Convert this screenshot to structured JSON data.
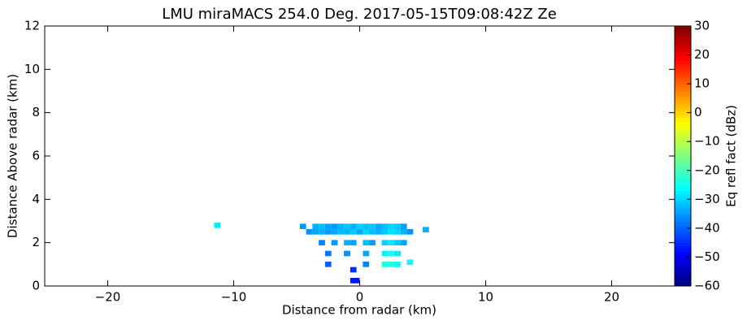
{
  "chart_data": {
    "type": "heatmap",
    "title": "LMU miraMACS 254.0 Deg. 2017-05-15T09:08:42Z  Ze",
    "x_label": "Distance from radar (km)",
    "y_label": "Distance Above radar  (km)",
    "colorbar_label": "Eq refl fact (dBz)",
    "colormap": "jet",
    "xlim": [
      -25,
      25
    ],
    "xticks": [
      {
        "value": -20,
        "label": "−20"
      },
      {
        "value": -10,
        "label": "−10"
      },
      0,
      10,
      20
    ],
    "ylim": [
      0,
      12
    ],
    "yticks": [
      0,
      2,
      4,
      6,
      8,
      10,
      12
    ],
    "clim": [
      -60,
      30
    ],
    "cticks": [
      {
        "value": -60,
        "label": "−60"
      },
      {
        "value": -50,
        "label": "−50"
      },
      {
        "value": -40,
        "label": "−40"
      },
      {
        "value": -30,
        "label": "−30"
      },
      {
        "value": -20,
        "label": "−20"
      },
      {
        "value": -10,
        "label": "−10"
      },
      0,
      10,
      20,
      30
    ],
    "x": [
      -4.5,
      -3.5,
      -3,
      -2.5,
      -2,
      -1.5,
      -1,
      -0.5,
      0,
      0.5,
      1,
      1.5,
      2,
      2.5,
      3,
      3.5,
      5.25,
      -4,
      -3.5,
      -3,
      -2.5,
      -2,
      -1.5,
      -1,
      -0.5,
      0,
      0.5,
      1,
      1.5,
      2,
      2.5,
      3,
      3.5,
      4,
      -3,
      -2,
      -1,
      -0.5,
      0.5,
      1,
      2,
      2.5,
      3,
      3.5,
      -2.5,
      -1,
      0.5,
      2,
      2.5,
      3,
      -2.5,
      0.5,
      2,
      2.5,
      3,
      -0.5,
      -0.5,
      -0.25,
      -11.3,
      4
    ],
    "y": [
      2.75,
      2.75,
      2.75,
      2.75,
      2.75,
      2.75,
      2.75,
      2.75,
      2.75,
      2.75,
      2.75,
      2.75,
      2.75,
      2.75,
      2.75,
      2.75,
      2.6,
      2.5,
      2.5,
      2.5,
      2.5,
      2.5,
      2.5,
      2.5,
      2.5,
      2.5,
      2.5,
      2.5,
      2.5,
      2.5,
      2.5,
      2.5,
      2.5,
      2.5,
      2,
      2,
      2,
      2,
      2,
      2,
      2,
      2,
      2,
      2,
      1.5,
      1.5,
      1.5,
      1.5,
      1.5,
      1.5,
      1,
      1,
      1,
      1,
      1,
      0.75,
      0.25,
      0.25,
      2.8,
      1.1
    ],
    "values": [
      -35,
      -33,
      -32,
      -34,
      -35,
      -33,
      -31,
      -33,
      -30,
      -32,
      -31,
      -34,
      -32,
      -30,
      -31,
      -35,
      -33,
      -36,
      -34,
      -33,
      -35,
      -34,
      -32,
      -33,
      -31,
      -34,
      -30,
      -32,
      -33,
      -31,
      -29,
      -30,
      -33,
      -36,
      -37,
      -35,
      -33,
      -34,
      -32,
      -35,
      -30,
      -28,
      -31,
      -34,
      -38,
      -36,
      -34,
      -27,
      -25,
      -28,
      -40,
      -37,
      -24,
      -23,
      -26,
      -45,
      -47,
      -47,
      -28,
      -25
    ]
  }
}
